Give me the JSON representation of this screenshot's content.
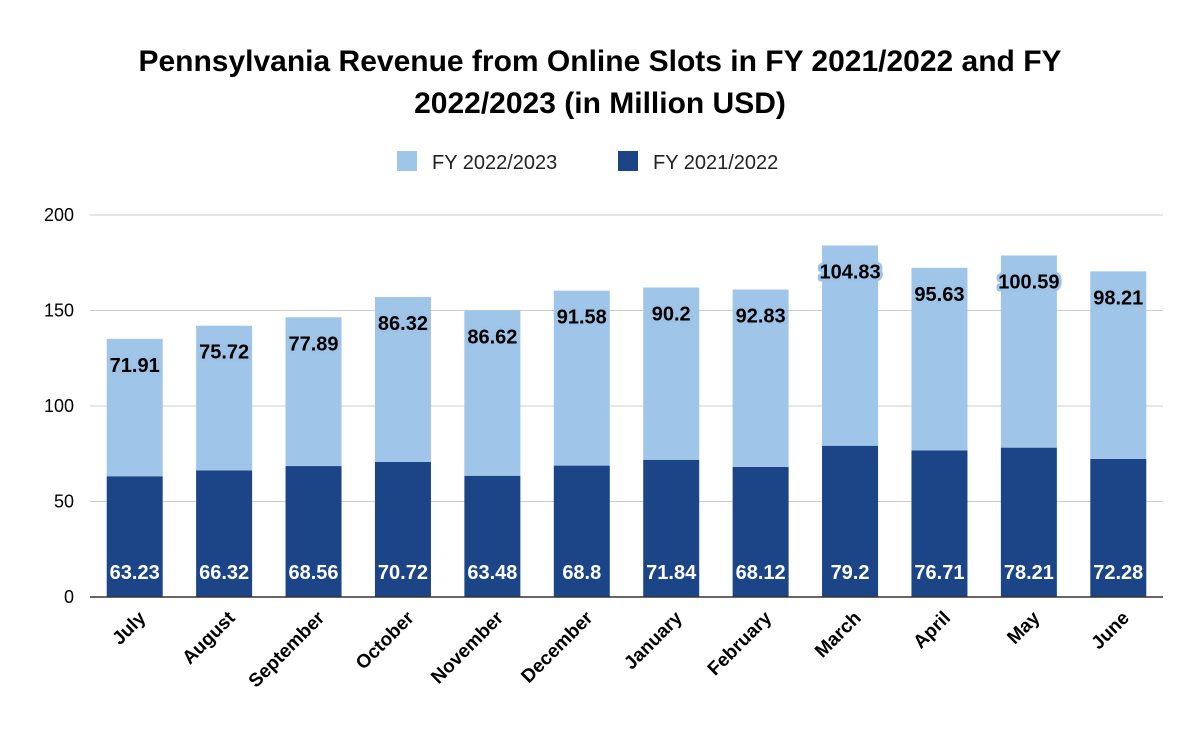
{
  "chart_data": {
    "type": "bar",
    "stacked": true,
    "title": "Pennsylvania Revenue from Online Slots in FY 2021/2022 and FY 2022/2023 (in Million USD)",
    "title_lines": [
      "Pennsylvania Revenue from Online Slots in FY 2021/2022 and FY",
      "2022/2023 (in Million USD)"
    ],
    "categories": [
      "July",
      "August",
      "September",
      "October",
      "November",
      "December",
      "January",
      "February",
      "March",
      "April",
      "May",
      "June"
    ],
    "series": [
      {
        "name": "FY 2021/2022",
        "color": "#1c4587",
        "values": [
          63.23,
          66.32,
          68.56,
          70.72,
          63.48,
          68.8,
          71.84,
          68.12,
          79.2,
          76.71,
          78.21,
          72.28
        ]
      },
      {
        "name": "FY 2022/2023",
        "color": "#9fc5e8",
        "values": [
          71.91,
          75.72,
          77.89,
          86.32,
          86.62,
          91.58,
          90.2,
          92.83,
          104.83,
          95.63,
          100.59,
          98.21
        ]
      }
    ],
    "legend_order": [
      "FY 2022/2023",
      "FY 2021/2022"
    ],
    "legend_position": "top-center",
    "xlabel": "",
    "ylabel": "",
    "ylim": [
      0,
      200
    ],
    "yticks": [
      0,
      50,
      100,
      150,
      200
    ],
    "grid": true,
    "gridline_color": "#cccccc",
    "axis_color": "#333333"
  }
}
